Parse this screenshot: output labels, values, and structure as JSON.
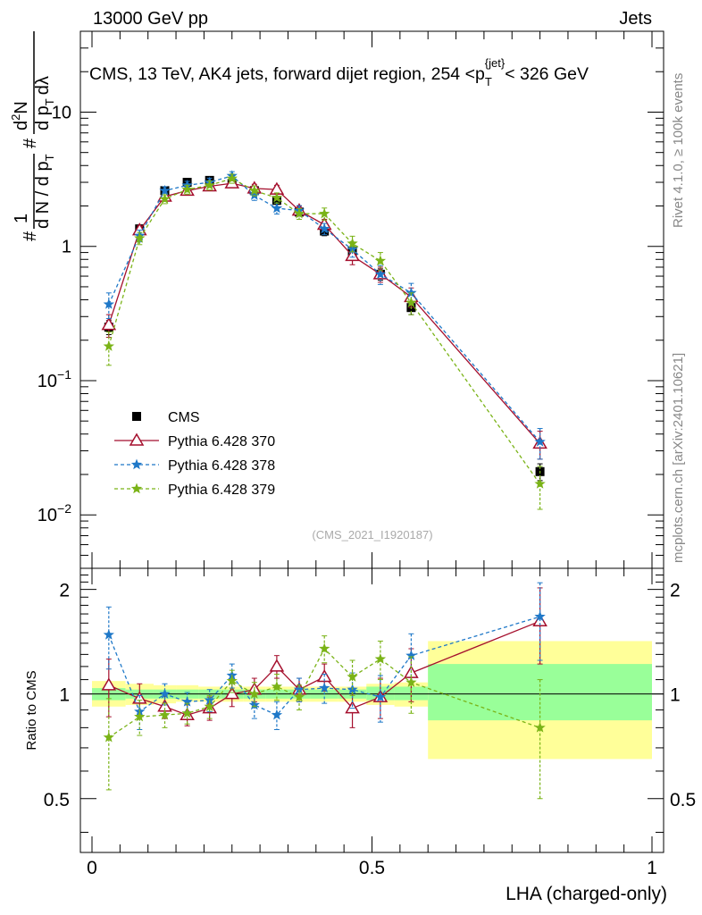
{
  "header": {
    "left": "13000 GeV pp",
    "right": "Jets"
  },
  "side_labels": {
    "rivet": "Rivet 4.1.0, ≥ 100k events",
    "mcplots": "mcplots.cern.ch [arXiv:2401.10621]"
  },
  "watermark": "(CMS_2021_I1920187)",
  "colors": {
    "cms": "#000000",
    "p370": "#a50f2d",
    "p378": "#1f78c8",
    "p379": "#7ab317",
    "band_inner": "#99ff99",
    "band_outer": "#ffff99"
  },
  "chart_data": [
    {
      "type": "scatter",
      "title": "CMS, 13 TeV, AK4 jets, forward dijet region, 254 <p_T^{jet}< 326 GeV",
      "title_parts": {
        "main": "CMS, 13 TeV, AK4 jets, forward dijet region, 254 <p",
        "sub": "T",
        "sup": "{jet}",
        "tail": "< 326 GeV"
      },
      "ylabel": "1/N dN/dpT dN/dpT dλ (ROOT-style: # 1 / d N / d p_T  # d^2N / d p_T d λ)",
      "ylabel_parts": {
        "a": "#",
        "b": "1",
        "c": "d N / d p",
        "d": "T",
        "e": "#",
        "f": "d",
        "g": "2",
        "h": "N",
        "i": "d p",
        "j": "T",
        "k": "dλ"
      },
      "yscale": "log",
      "xlim": [
        0,
        1
      ],
      "ylim": [
        0.004,
        40
      ],
      "yticks": [
        0.01,
        0.1,
        1,
        10
      ],
      "ytick_labels": [
        {
          "base": "10",
          "exp": "−2"
        },
        {
          "base": "10",
          "exp": "−1"
        },
        {
          "base": "1",
          "exp": ""
        },
        {
          "base": "10",
          "exp": ""
        }
      ],
      "x": [
        0.03,
        0.085,
        0.13,
        0.17,
        0.21,
        0.25,
        0.29,
        0.33,
        0.37,
        0.415,
        0.465,
        0.515,
        0.57,
        0.8
      ],
      "series": [
        {
          "name": "CMS",
          "marker": "square",
          "style": "none",
          "values": [
            0.25,
            1.35,
            2.6,
            3.0,
            3.1,
            2.95,
            2.6,
            2.2,
            1.8,
            1.3,
            0.92,
            0.62,
            0.35,
            0.021
          ],
          "errors": [
            0.03,
            0.08,
            0.15,
            0.15,
            0.15,
            0.15,
            0.15,
            0.13,
            0.11,
            0.1,
            0.08,
            0.06,
            0.04,
            0.003
          ]
        },
        {
          "name": "Pythia 6.428 370",
          "marker": "triangle-open",
          "style": "solid",
          "values": [
            0.26,
            1.32,
            2.35,
            2.6,
            2.8,
            2.95,
            2.7,
            2.65,
            1.85,
            1.45,
            0.85,
            0.62,
            0.42,
            0.034
          ],
          "errors": [
            0.05,
            0.1,
            0.15,
            0.18,
            0.2,
            0.2,
            0.2,
            0.2,
            0.15,
            0.14,
            0.12,
            0.08,
            0.07,
            0.008
          ]
        },
        {
          "name": "Pythia 6.428 378",
          "marker": "star",
          "style": "dashed",
          "values": [
            0.37,
            1.2,
            2.6,
            2.85,
            3.0,
            3.35,
            2.4,
            1.92,
            1.85,
            1.35,
            0.95,
            0.62,
            0.45,
            0.035
          ],
          "errors": [
            0.08,
            0.12,
            0.18,
            0.2,
            0.22,
            0.25,
            0.2,
            0.18,
            0.16,
            0.13,
            0.12,
            0.1,
            0.08,
            0.009
          ]
        },
        {
          "name": "Pythia 6.428 379",
          "marker": "star",
          "style": "dashed",
          "values": [
            0.18,
            1.15,
            2.25,
            2.65,
            2.85,
            3.2,
            2.6,
            2.3,
            1.75,
            1.75,
            1.05,
            0.78,
            0.38,
            0.017
          ],
          "errors": [
            0.05,
            0.12,
            0.17,
            0.2,
            0.22,
            0.25,
            0.22,
            0.2,
            0.16,
            0.18,
            0.14,
            0.12,
            0.07,
            0.006
          ]
        }
      ],
      "legend": [
        "CMS",
        "Pythia 6.428 370",
        "Pythia 6.428 378",
        "Pythia 6.428 379"
      ],
      "legend_position": "lower-left"
    },
    {
      "type": "scatter",
      "xlabel": "LHA (charged-only)",
      "ylabel": "Ratio to CMS",
      "xlim": [
        0,
        1
      ],
      "ylim": [
        0.35,
        2.3
      ],
      "yticks": [
        0.5,
        1,
        2
      ],
      "ytick_labels": [
        "0.5",
        "1",
        "2"
      ],
      "xticks": [
        0,
        0.5,
        1
      ],
      "xtick_labels": [
        "0",
        "0.5",
        "1"
      ],
      "reference_line": 1,
      "bands": {
        "edges": [
          0,
          0.06,
          0.11,
          0.15,
          0.19,
          0.23,
          0.27,
          0.31,
          0.35,
          0.39,
          0.44,
          0.49,
          0.54,
          0.6,
          1.0
        ],
        "inner": [
          [
            0.96,
            1.04
          ],
          [
            0.97,
            1.03
          ],
          [
            0.97,
            1.03
          ],
          [
            0.97,
            1.03
          ],
          [
            0.97,
            1.03
          ],
          [
            0.97,
            1.03
          ],
          [
            0.97,
            1.03
          ],
          [
            0.97,
            1.03
          ],
          [
            0.97,
            1.03
          ],
          [
            0.97,
            1.03
          ],
          [
            0.97,
            1.03
          ],
          [
            0.96,
            1.05
          ],
          [
            0.96,
            1.05
          ],
          [
            0.84,
            1.22
          ]
        ],
        "outer": [
          [
            0.92,
            1.09
          ],
          [
            0.93,
            1.07
          ],
          [
            0.94,
            1.06
          ],
          [
            0.95,
            1.06
          ],
          [
            0.95,
            1.05
          ],
          [
            0.95,
            1.05
          ],
          [
            0.95,
            1.05
          ],
          [
            0.95,
            1.05
          ],
          [
            0.95,
            1.05
          ],
          [
            0.95,
            1.05
          ],
          [
            0.95,
            1.05
          ],
          [
            0.93,
            1.07
          ],
          [
            0.92,
            1.08
          ],
          [
            0.65,
            1.42
          ]
        ]
      },
      "series": [
        {
          "name": "Pythia 6.428 370",
          "marker": "triangle-open",
          "style": "solid",
          "values": [
            1.06,
            0.97,
            0.92,
            0.87,
            0.91,
            1.0,
            1.03,
            1.2,
            1.03,
            1.12,
            0.91,
            0.98,
            1.15,
            1.62
          ],
          "errors": [
            0.2,
            0.1,
            0.07,
            0.06,
            0.07,
            0.08,
            0.08,
            0.09,
            0.08,
            0.1,
            0.11,
            0.13,
            0.2,
            0.4
          ]
        },
        {
          "name": "Pythia 6.428 378",
          "marker": "star",
          "style": "dashed",
          "values": [
            1.48,
            0.89,
            1.0,
            0.95,
            0.96,
            1.13,
            0.93,
            0.87,
            1.03,
            1.04,
            1.03,
            0.98,
            1.29,
            1.67
          ],
          "errors": [
            0.3,
            0.1,
            0.07,
            0.06,
            0.07,
            0.09,
            0.08,
            0.08,
            0.08,
            0.1,
            0.12,
            0.15,
            0.2,
            0.42
          ]
        },
        {
          "name": "Pythia 6.428 379",
          "marker": "star",
          "style": "dashed",
          "values": [
            0.75,
            0.86,
            0.87,
            0.88,
            0.92,
            1.09,
            1.0,
            1.05,
            0.98,
            1.35,
            1.12,
            1.26,
            1.08,
            0.8
          ],
          "errors": [
            0.22,
            0.1,
            0.07,
            0.06,
            0.07,
            0.08,
            0.08,
            0.09,
            0.08,
            0.12,
            0.13,
            0.16,
            0.2,
            0.3
          ]
        }
      ]
    }
  ]
}
